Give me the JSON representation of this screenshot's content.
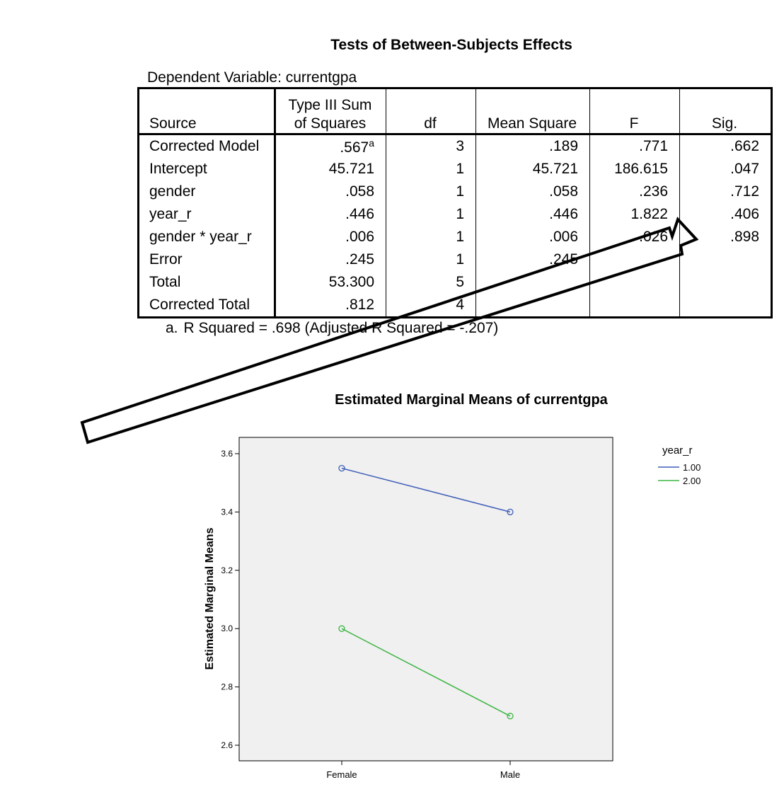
{
  "table": {
    "title": "Tests of Between-Subjects Effects",
    "dependent_variable": "Dependent Variable: currentgpa",
    "headers": {
      "source": "Source",
      "ss_line1": "Type III Sum",
      "ss_line2": "of Squares",
      "df": "df",
      "ms": "Mean Square",
      "f": "F",
      "sig": "Sig."
    },
    "rows": [
      {
        "source": "Corrected Model",
        "ss": ".567",
        "ss_sup": "a",
        "df": "3",
        "ms": ".189",
        "f": ".771",
        "sig": ".662"
      },
      {
        "source": "Intercept",
        "ss": "45.721",
        "df": "1",
        "ms": "45.721",
        "f": "186.615",
        "sig": ".047"
      },
      {
        "source": "gender",
        "ss": ".058",
        "df": "1",
        "ms": ".058",
        "f": ".236",
        "sig": ".712"
      },
      {
        "source": "year_r",
        "ss": ".446",
        "df": "1",
        "ms": ".446",
        "f": "1.822",
        "sig": ".406"
      },
      {
        "source": "gender * year_r",
        "ss": ".006",
        "df": "1",
        "ms": ".006",
        "f": ".026",
        "sig": ".898"
      },
      {
        "source": "Error",
        "ss": ".245",
        "df": "1",
        "ms": ".245",
        "f": "",
        "sig": ""
      },
      {
        "source": "Total",
        "ss": "53.300",
        "df": "5",
        "ms": "",
        "f": "",
        "sig": ""
      },
      {
        "source": "Corrected Total",
        "ss": ".812",
        "df": "4",
        "ms": "",
        "f": "",
        "sig": ""
      }
    ],
    "footnote_mark": "a.",
    "footnote": "R Squared = .698 (Adjusted R Squared = -.207)"
  },
  "chart_data": {
    "type": "line",
    "title": "Estimated Marginal Means of currentgpa",
    "xlabel": "",
    "ylabel": "Estimated Marginal Means",
    "categories": [
      "Female",
      "Male"
    ],
    "ylim": [
      2.6,
      3.6
    ],
    "yticks": [
      "2.6",
      "2.8",
      "3.0",
      "3.2",
      "3.4",
      "3.6"
    ],
    "legend_title": "year_r",
    "legend_position": "top-right",
    "grid": false,
    "series": [
      {
        "name": "1.00",
        "values": [
          3.55,
          3.4
        ],
        "color": "#3f5fb8"
      },
      {
        "name": "2.00",
        "values": [
          3.0,
          2.7
        ],
        "color": "#3cb544"
      }
    ]
  },
  "annotation": {
    "arrow_icon": "outlined-arrow-icon"
  }
}
